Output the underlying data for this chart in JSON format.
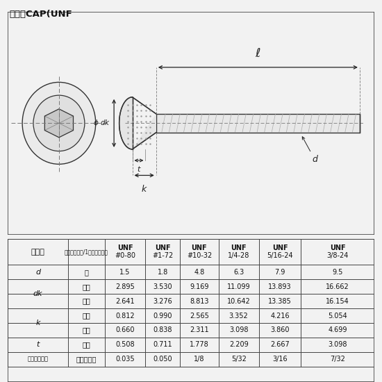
{
  "title": "ボタンCAP(UNF",
  "bg_color": "#f2f2f2",
  "panel_color": "#f5f5f5",
  "table_panel_color": "#f5f5f5",
  "border_color": "#444444",
  "line_color": "#333333",
  "dim_color": "#222222",
  "unf_cols": [
    "UNF\n#0-80",
    "UNF\n#1-72",
    "UNF\n#10-32",
    "UNF\n1/4-28",
    "UNF\n5/16-24",
    "UNF\n3/8-24"
  ],
  "row_labels": [
    "d",
    "dk",
    "dk",
    "k",
    "k",
    "t",
    "六角穴サイズ"
  ],
  "row_sublabels": [
    "約",
    "最大",
    "最小",
    "最大",
    "最小",
    "最小",
    "六角レンチ"
  ],
  "row_data": [
    [
      "1.5",
      "1.8",
      "4.8",
      "6.3",
      "7.9",
      "9.5"
    ],
    [
      "2.895",
      "3.530",
      "9.169",
      "11.099",
      "13.893",
      "16.662"
    ],
    [
      "2.641",
      "3.276",
      "8.813",
      "10.642",
      "13.385",
      "16.154"
    ],
    [
      "0.812",
      "0.990",
      "2.565",
      "3.352",
      "4.216",
      "5.054"
    ],
    [
      "0.660",
      "0.838",
      "2.311",
      "3.098",
      "3.860",
      "4.699"
    ],
    [
      "0.508",
      "0.711",
      "1.778",
      "2.209",
      "2.667",
      "3.098"
    ],
    [
      "0.035",
      "0.050",
      "1/8",
      "5/32",
      "3/16",
      "7/32"
    ]
  ]
}
